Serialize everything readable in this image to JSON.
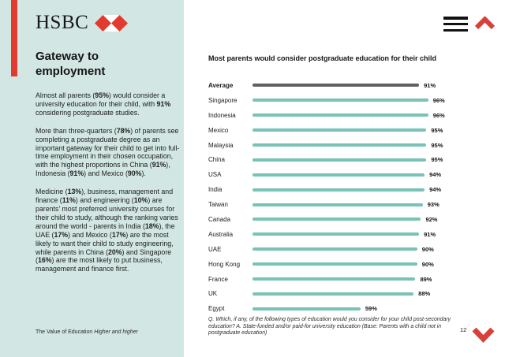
{
  "brand": {
    "logo_text": "HSBC",
    "accent_red": "#e23a2e"
  },
  "nav": {
    "page_number": "12"
  },
  "sidebar": {
    "title": "Gateway to employment",
    "paragraphs": [
      "Almost all parents (**95%**) would consider a university education for their child, with **91%** considering postgraduate studies.",
      "More than three-quarters (**78%**) of parents see completing a postgraduate degree as an important gateway for their child to get into full-time employment in their chosen occupation, with the highest proportions in China (**91%**), Indonesia (**91%**) and Mexico (**90%**).",
      "Medicine (**13%**), business, management and finance (**11%**) and engineering (**10%**) are parents’ most preferred university courses for their child to study, although the ranking varies around the world - parents in India (**18%**), the UAE (**17%**) and Mexico (**17%**) are the most likely to want their child to study engineering, while parents in China (**20%**) and Singapore (**16%**) are the most likely to put business, management and finance first."
    ],
    "footer_plain": "The Value of Education ",
    "footer_italic": "Higher and higher"
  },
  "chart_data": {
    "type": "bar",
    "orientation": "horizontal",
    "title": "Most parents would consider postgraduate education for their child",
    "categories": [
      "Average",
      "Singapore",
      "Indonesia",
      "Mexico",
      "Malaysia",
      "China",
      "USA",
      "India",
      "Taiwan",
      "Canada",
      "Australia",
      "UAE",
      "Hong Kong",
      "France",
      "UK",
      "Egypt"
    ],
    "values": [
      91,
      96,
      96,
      95,
      95,
      95,
      94,
      94,
      93,
      92,
      91,
      90,
      90,
      89,
      88,
      59
    ],
    "unit": "%",
    "xlim": [
      0,
      100
    ],
    "grid": false,
    "legend": false,
    "bar_color": "#78c2b6",
    "average_bar_color": "#606062",
    "footnote": "Q. Which, if any, of the following types of education would you consider for your child post-secondary education? A. State-funded and/or paid-for university education (Base: Parents with a child not in postgraduate education)"
  }
}
